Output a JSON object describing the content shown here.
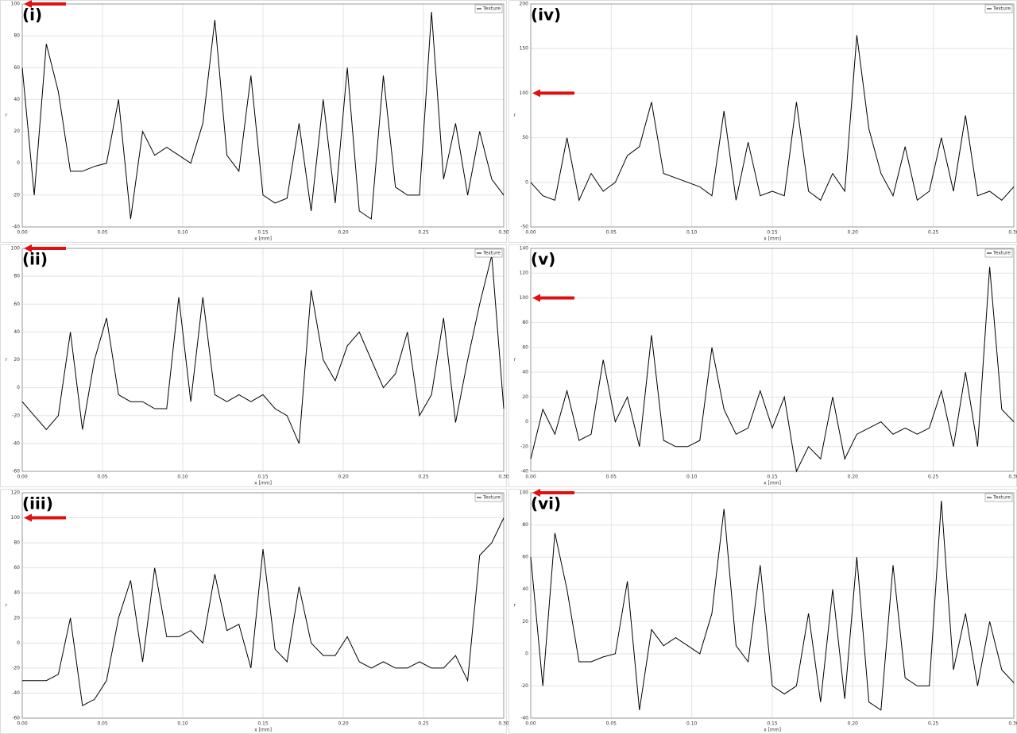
{
  "chart_data": [
    {
      "type": "line",
      "panel_label": "(i)",
      "xlabel": "x [mm]",
      "ylabel": "r",
      "x": [
        0,
        0.0075,
        0.015,
        0.0225,
        0.03,
        0.0375,
        0.045,
        0.0525,
        0.06,
        0.0675,
        0.075,
        0.0825,
        0.09,
        0.0975,
        0.105,
        0.1125,
        0.12,
        0.1275,
        0.135,
        0.1425,
        0.15,
        0.1575,
        0.165,
        0.1725,
        0.18,
        0.1875,
        0.195,
        0.2025,
        0.21,
        0.2175,
        0.225,
        0.2325,
        0.24,
        0.2475,
        0.255,
        0.2625,
        0.27,
        0.2775,
        0.285,
        0.2925,
        0.3
      ],
      "series": [
        {
          "name": "Texture",
          "color": "#000000",
          "values": [
            60,
            -20,
            75,
            45,
            -5,
            -5,
            -2,
            0,
            40,
            -35,
            20,
            5,
            10,
            5,
            0,
            25,
            90,
            5,
            -5,
            55,
            -20,
            -25,
            -22,
            25,
            -30,
            40,
            -25,
            60,
            -30,
            -35,
            55,
            -15,
            -20,
            -20,
            95,
            -10,
            25,
            -20,
            20,
            -10,
            -20
          ]
        }
      ],
      "xlim": [
        0,
        0.3
      ],
      "xticks": [
        {
          "value": 0,
          "label": "0.00"
        },
        {
          "value": 0.05,
          "label": "0.05"
        },
        {
          "value": 0.1,
          "label": "0.10"
        },
        {
          "value": 0.15,
          "label": "0.15"
        },
        {
          "value": 0.2,
          "label": "0.20"
        },
        {
          "value": 0.25,
          "label": "0.25"
        },
        {
          "value": 0.3,
          "label": "0.30"
        }
      ],
      "ylim": [
        -40,
        100
      ],
      "yticks": [
        -40,
        -20,
        0,
        20,
        40,
        60,
        80,
        100
      ],
      "grid": true,
      "legend": "upper right",
      "arrow_at": 100
    },
    {
      "type": "line",
      "panel_label": "(iv)",
      "xlabel": "x [mm]",
      "ylabel": "r",
      "x": [
        0,
        0.0075,
        0.015,
        0.0225,
        0.03,
        0.0375,
        0.045,
        0.0525,
        0.06,
        0.0675,
        0.075,
        0.0825,
        0.09,
        0.0975,
        0.105,
        0.1125,
        0.12,
        0.1275,
        0.135,
        0.1425,
        0.15,
        0.1575,
        0.165,
        0.1725,
        0.18,
        0.1875,
        0.195,
        0.2025,
        0.21,
        0.2175,
        0.225,
        0.2325,
        0.24,
        0.2475,
        0.255,
        0.2625,
        0.27,
        0.2775,
        0.285,
        0.2925,
        0.3
      ],
      "series": [
        {
          "name": "Texture",
          "color": "#000000",
          "values": [
            0,
            -15,
            -20,
            50,
            -20,
            10,
            -10,
            0,
            30,
            40,
            90,
            10,
            5,
            0,
            -5,
            -15,
            80,
            -20,
            45,
            -15,
            -10,
            -15,
            90,
            -10,
            -20,
            10,
            -10,
            165,
            60,
            10,
            -15,
            40,
            -20,
            -10,
            50,
            -10,
            75,
            -15,
            -10,
            -20,
            -5
          ]
        }
      ],
      "xlim": [
        0,
        0.3
      ],
      "xticks": [
        {
          "value": 0,
          "label": "0.00"
        },
        {
          "value": 0.05,
          "label": "0.05"
        },
        {
          "value": 0.1,
          "label": "0.10"
        },
        {
          "value": 0.15,
          "label": "0.15"
        },
        {
          "value": 0.2,
          "label": "0.20"
        },
        {
          "value": 0.25,
          "label": "0.25"
        },
        {
          "value": 0.3,
          "label": "0.30"
        }
      ],
      "ylim": [
        -50,
        200
      ],
      "yticks": [
        -50,
        0,
        50,
        100,
        150,
        200
      ],
      "grid": true,
      "legend": "upper right",
      "arrow_at": 100
    },
    {
      "type": "line",
      "panel_label": "(ii)",
      "xlabel": "x [mm]",
      "ylabel": "r",
      "x": [
        0,
        0.0075,
        0.015,
        0.0225,
        0.03,
        0.0375,
        0.045,
        0.0525,
        0.06,
        0.0675,
        0.075,
        0.0825,
        0.09,
        0.0975,
        0.105,
        0.1125,
        0.12,
        0.1275,
        0.135,
        0.1425,
        0.15,
        0.1575,
        0.165,
        0.1725,
        0.18,
        0.1875,
        0.195,
        0.2025,
        0.21,
        0.2175,
        0.225,
        0.2325,
        0.24,
        0.2475,
        0.255,
        0.2625,
        0.27,
        0.2775,
        0.285,
        0.2925,
        0.3
      ],
      "series": [
        {
          "name": "Texture",
          "color": "#000000",
          "values": [
            -10,
            -20,
            -30,
            -20,
            40,
            -30,
            20,
            50,
            -5,
            -10,
            -10,
            -15,
            -15,
            65,
            -10,
            65,
            -5,
            -10,
            -5,
            -10,
            -5,
            -15,
            -20,
            -40,
            70,
            20,
            5,
            30,
            40,
            20,
            0,
            10,
            40,
            -20,
            -5,
            50,
            -25,
            20,
            60,
            95,
            -15
          ]
        }
      ],
      "xlim": [
        0,
        0.3
      ],
      "xticks": [
        {
          "value": 0,
          "label": "0.00"
        },
        {
          "value": 0.05,
          "label": "0.05"
        },
        {
          "value": 0.1,
          "label": "0.10"
        },
        {
          "value": 0.15,
          "label": "0.15"
        },
        {
          "value": 0.2,
          "label": "0.20"
        },
        {
          "value": 0.25,
          "label": "0.25"
        },
        {
          "value": 0.3,
          "label": "0.30"
        }
      ],
      "ylim": [
        -60,
        100
      ],
      "yticks": [
        -60,
        -40,
        -20,
        0,
        20,
        40,
        60,
        80,
        100
      ],
      "grid": true,
      "legend": "upper right",
      "arrow_at": 100
    },
    {
      "type": "line",
      "panel_label": "(v)",
      "xlabel": "x [mm]",
      "ylabel": "r",
      "x": [
        0,
        0.0075,
        0.015,
        0.0225,
        0.03,
        0.0375,
        0.045,
        0.0525,
        0.06,
        0.0675,
        0.075,
        0.0825,
        0.09,
        0.0975,
        0.105,
        0.1125,
        0.12,
        0.1275,
        0.135,
        0.1425,
        0.15,
        0.1575,
        0.165,
        0.1725,
        0.18,
        0.1875,
        0.195,
        0.2025,
        0.21,
        0.2175,
        0.225,
        0.2325,
        0.24,
        0.2475,
        0.255,
        0.2625,
        0.27,
        0.2775,
        0.285,
        0.2925,
        0.3
      ],
      "series": [
        {
          "name": "Texture",
          "color": "#000000",
          "values": [
            -30,
            10,
            -10,
            25,
            -15,
            -10,
            50,
            0,
            20,
            -20,
            70,
            -15,
            -20,
            -20,
            -15,
            60,
            10,
            -10,
            -5,
            25,
            -5,
            20,
            -40,
            -20,
            -30,
            20,
            -30,
            -10,
            -5,
            0,
            -10,
            -5,
            -10,
            -5,
            25,
            -20,
            40,
            -20,
            125,
            10,
            0
          ]
        }
      ],
      "xlim": [
        0,
        0.3
      ],
      "xticks": [
        {
          "value": 0,
          "label": "0.00"
        },
        {
          "value": 0.05,
          "label": "0.05"
        },
        {
          "value": 0.1,
          "label": "0.10"
        },
        {
          "value": 0.15,
          "label": "0.15"
        },
        {
          "value": 0.2,
          "label": "0.20"
        },
        {
          "value": 0.25,
          "label": "0.25"
        },
        {
          "value": 0.3,
          "label": "0.30"
        }
      ],
      "ylim": [
        -40,
        140
      ],
      "yticks": [
        -40,
        -20,
        0,
        20,
        40,
        60,
        80,
        100,
        120,
        140
      ],
      "grid": true,
      "legend": "upper right",
      "arrow_at": 100
    },
    {
      "type": "line",
      "panel_label": "(iii)",
      "xlabel": "x [mm]",
      "ylabel": "r",
      "x": [
        0,
        0.0075,
        0.015,
        0.0225,
        0.03,
        0.0375,
        0.045,
        0.0525,
        0.06,
        0.0675,
        0.075,
        0.0825,
        0.09,
        0.0975,
        0.105,
        0.1125,
        0.12,
        0.1275,
        0.135,
        0.1425,
        0.15,
        0.1575,
        0.165,
        0.1725,
        0.18,
        0.1875,
        0.195,
        0.2025,
        0.21,
        0.2175,
        0.225,
        0.2325,
        0.24,
        0.2475,
        0.255,
        0.2625,
        0.27,
        0.2775,
        0.285,
        0.2925,
        0.3
      ],
      "series": [
        {
          "name": "Texture",
          "color": "#000000",
          "values": [
            -30,
            -30,
            -30,
            -25,
            20,
            -50,
            -45,
            -30,
            20,
            50,
            -15,
            60,
            5,
            5,
            10,
            0,
            55,
            10,
            15,
            -20,
            75,
            -5,
            -15,
            45,
            0,
            -10,
            -10,
            5,
            -15,
            -20,
            -15,
            -20,
            -20,
            -15,
            -20,
            -20,
            -10,
            -30,
            70,
            80,
            100
          ]
        }
      ],
      "xlim": [
        0,
        0.3
      ],
      "xticks": [
        {
          "value": 0,
          "label": "0.00"
        },
        {
          "value": 0.05,
          "label": "0.05"
        },
        {
          "value": 0.1,
          "label": "0.10"
        },
        {
          "value": 0.15,
          "label": "0.15"
        },
        {
          "value": 0.2,
          "label": "0.20"
        },
        {
          "value": 0.25,
          "label": "0.25"
        },
        {
          "value": 0.3,
          "label": "0.30"
        }
      ],
      "ylim": [
        -60,
        120
      ],
      "yticks": [
        -60,
        -40,
        -20,
        0,
        20,
        40,
        60,
        80,
        100,
        120
      ],
      "grid": true,
      "legend": "upper right",
      "arrow_at": 100
    },
    {
      "type": "line",
      "panel_label": "(vi)",
      "xlabel": "x [mm]",
      "ylabel": "r",
      "x": [
        0,
        0.0075,
        0.015,
        0.0225,
        0.03,
        0.0375,
        0.045,
        0.0525,
        0.06,
        0.0675,
        0.075,
        0.0825,
        0.09,
        0.0975,
        0.105,
        0.1125,
        0.12,
        0.1275,
        0.135,
        0.1425,
        0.15,
        0.1575,
        0.165,
        0.1725,
        0.18,
        0.1875,
        0.195,
        0.2025,
        0.21,
        0.2175,
        0.225,
        0.2325,
        0.24,
        0.2475,
        0.255,
        0.2625,
        0.27,
        0.2775,
        0.285,
        0.2925,
        0.3
      ],
      "series": [
        {
          "name": "Texture",
          "color": "#000000",
          "values": [
            60,
            -20,
            75,
            40,
            -5,
            -5,
            -2,
            0,
            45,
            -35,
            15,
            5,
            10,
            5,
            0,
            25,
            90,
            5,
            -5,
            55,
            -20,
            -25,
            -20,
            25,
            -30,
            40,
            -28,
            60,
            -30,
            -35,
            55,
            -15,
            -20,
            -20,
            95,
            -10,
            25,
            -20,
            20,
            -10,
            -18
          ]
        }
      ],
      "xlim": [
        0,
        0.3
      ],
      "xticks": [
        {
          "value": 0,
          "label": "0.00"
        },
        {
          "value": 0.05,
          "label": "0.05"
        },
        {
          "value": 0.1,
          "label": "0.10"
        },
        {
          "value": 0.15,
          "label": "0.15"
        },
        {
          "value": 0.2,
          "label": "0.20"
        },
        {
          "value": 0.25,
          "label": "0.25"
        },
        {
          "value": 0.3,
          "label": "0.30"
        }
      ],
      "ylim": [
        -40,
        100
      ],
      "yticks": [
        -40,
        -20,
        0,
        20,
        40,
        60,
        80,
        100
      ],
      "grid": true,
      "legend": "upper right",
      "arrow_at": 100
    }
  ]
}
